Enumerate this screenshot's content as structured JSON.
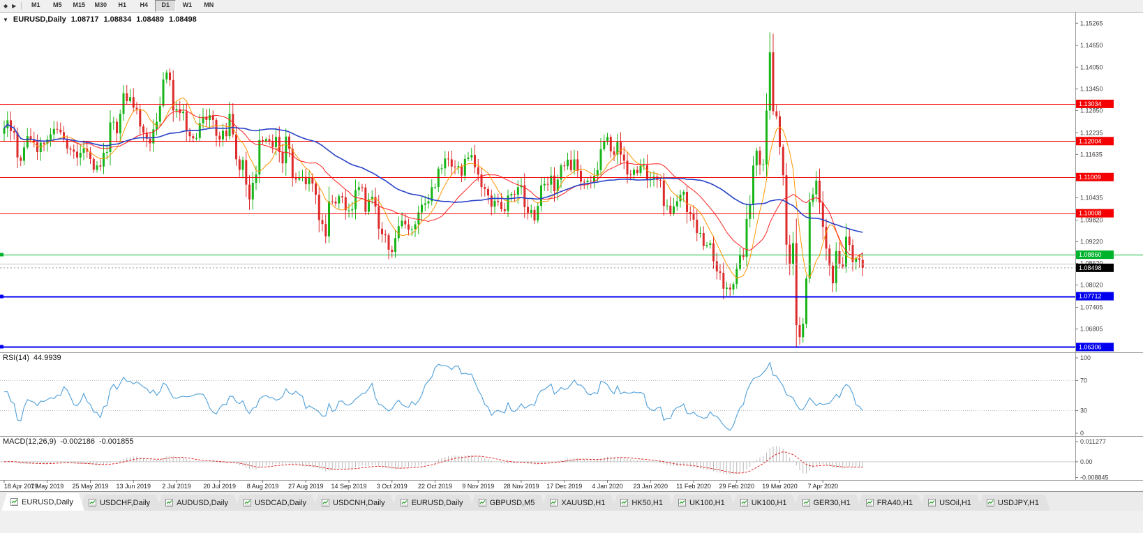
{
  "toolbar": {
    "timeframes": [
      "M1",
      "M5",
      "M15",
      "M30",
      "H1",
      "H4",
      "D1",
      "W1",
      "MN"
    ],
    "active_timeframe": "D1"
  },
  "chart": {
    "symbol_label": "EURUSD,Daily",
    "ohlc": {
      "open": "1.08717",
      "high": "1.08834",
      "low": "1.08489",
      "close": "1.08498"
    }
  },
  "rsi": {
    "label": "RSI(14)",
    "value": "44.9939",
    "scale_labels": [
      100,
      70,
      30,
      0
    ],
    "levels": [
      70,
      30
    ]
  },
  "macd": {
    "label": "MACD(12,26,9)",
    "value_main": "-0.002186",
    "value_signal": "-0.001855",
    "scale_labels": [
      "0.011277",
      "0.00",
      "-0.008845"
    ]
  },
  "colors": {
    "candle_up": "#18b518",
    "candle_down": "#dd2b2b",
    "ma_fast": "#ff9500",
    "ma_mid": "#ff1f1f",
    "ma_slow": "#2742c8",
    "line_red": "#f40000",
    "line_green": "#00b32c",
    "line_blue": "#0000ee",
    "line_gray": "#c4c4c4",
    "bid_label_bg": "#000000",
    "rsi_line": "#4f9fd8",
    "macd_hist": "#b9b9b9",
    "macd_signal": "#e02020",
    "scale_text": "#3c3c3c"
  },
  "tabs": [
    {
      "label": "EURUSD,Daily",
      "active": true
    },
    {
      "label": "USDCHF,Daily",
      "active": false
    },
    {
      "label": "AUDUSD,Daily",
      "active": false
    },
    {
      "label": "USDCAD,Daily",
      "active": false
    },
    {
      "label": "USDCNH,Daily",
      "active": false
    },
    {
      "label": "EURUSD,Daily",
      "active": false
    },
    {
      "label": "GBPUSD,M5",
      "active": false
    },
    {
      "label": "XAUUSD,H1",
      "active": false
    },
    {
      "label": "HK50,H1",
      "active": false
    },
    {
      "label": "UK100,H1",
      "active": false
    },
    {
      "label": "UK100,H1",
      "active": false
    },
    {
      "label": "GER30,H1",
      "active": false
    },
    {
      "label": "FRA40,H1",
      "active": false
    },
    {
      "label": "USOil,H1",
      "active": false
    },
    {
      "label": "USDJPY,H1",
      "active": false
    }
  ],
  "chart_data": {
    "type": "candlestick",
    "symbol": "EURUSD",
    "timeframe": "Daily",
    "ylim": [
      1.0616,
      1.1558
    ],
    "price_scale_labels": [
      1.15265,
      1.1465,
      1.1405,
      1.1345,
      1.1285,
      1.12235,
      1.11635,
      1.10435,
      1.0982,
      1.0922,
      1.0862,
      1.0802,
      1.07405,
      1.06805
    ],
    "hlines": [
      {
        "price": 1.13034,
        "color": "red"
      },
      {
        "price": 1.12004,
        "color": "red"
      },
      {
        "price": 1.11009,
        "color": "red"
      },
      {
        "price": 1.10008,
        "color": "red"
      },
      {
        "price": 1.0886,
        "color": "green"
      },
      {
        "price": 1.0862,
        "color": "gray"
      },
      {
        "price": 1.07712,
        "color": "blue"
      },
      {
        "price": 1.06306,
        "color": "blue"
      }
    ],
    "bid": 1.08498,
    "x_label_step": 13,
    "x_labels": [
      "18 Apr 2019",
      "7 May 2019",
      "25 May 2019",
      "13 Jun 2019",
      "2 Jul 2019",
      "20 Jul 2019",
      "8 Aug 2019",
      "27 Aug 2019",
      "14 Sep 2019",
      "3 Oct 2019",
      "22 Oct 2019",
      "9 Nov 2019",
      "28 Nov 2019",
      "17 Dec 2019",
      "4 Jan 2020",
      "23 Jan 2020",
      "11 Feb 2020",
      "29 Feb 2020",
      "19 Mar 2020",
      "7 Apr 2020"
    ],
    "indicators": {
      "overlays": [
        {
          "type": "SMA",
          "period": 8
        },
        {
          "type": "SMA",
          "period": 20
        },
        {
          "type": "SMA",
          "period": 50
        }
      ],
      "rsi": {
        "period": 14,
        "last": 44.9939,
        "range": [
          0,
          100
        ],
        "levels": [
          70,
          30
        ]
      },
      "macd": {
        "fast": 12,
        "slow": 26,
        "signal": 9,
        "last_main": -0.002186,
        "last_signal": -0.001855,
        "ylim": [
          -0.008845,
          0.011277
        ]
      }
    },
    "closes": [
      1.1236,
      1.1258,
      1.1228,
      1.1224,
      1.1155,
      1.1146,
      1.1183,
      1.1214,
      1.1205,
      1.1197,
      1.117,
      1.1196,
      1.1193,
      1.1205,
      1.1219,
      1.1234,
      1.1232,
      1.1225,
      1.1206,
      1.118,
      1.1177,
      1.1171,
      1.1155,
      1.1168,
      1.118,
      1.1171,
      1.1151,
      1.1121,
      1.1133,
      1.113,
      1.1168,
      1.117,
      1.1252,
      1.1254,
      1.1222,
      1.1276,
      1.1333,
      1.1311,
      1.1322,
      1.1293,
      1.1289,
      1.1241,
      1.1224,
      1.1207,
      1.1194,
      1.1233,
      1.1254,
      1.1298,
      1.1371,
      1.139,
      1.1369,
      1.1285,
      1.1289,
      1.1278,
      1.1282,
      1.1227,
      1.1214,
      1.1208,
      1.1209,
      1.125,
      1.1268,
      1.1259,
      1.1272,
      1.1259,
      1.1215,
      1.1205,
      1.1229,
      1.1214,
      1.1276,
      1.1219,
      1.115,
      1.1121,
      1.1148,
      1.108,
      1.1039,
      1.1085,
      1.1108,
      1.1203,
      1.12,
      1.1206,
      1.12,
      1.1184,
      1.1212,
      1.117,
      1.1139,
      1.1213,
      1.1179,
      1.1098,
      1.1094,
      1.1099,
      1.1101,
      1.1081,
      1.11,
      1.1083,
      1.1052,
      1.0982,
      1.0971,
      1.0937,
      1.1034,
      1.1033,
      1.1028,
      1.1048,
      1.1045,
      1.1009,
      1.1009,
      1.1012,
      1.1065,
      1.1073,
      1.1072,
      1.1005,
      1.1039,
      1.1046,
      1.1019,
      1.0958,
      1.0943,
      1.094,
      1.09,
      1.0894,
      1.0932,
      1.0965,
      1.098,
      1.097,
      1.0956,
      1.0957,
      1.097,
      1.1003,
      1.1024,
      1.1028,
      1.1034,
      1.1073,
      1.1073,
      1.1124,
      1.1125,
      1.1152,
      1.115,
      1.113,
      1.1128,
      1.1131,
      1.1105,
      1.1151,
      1.1155,
      1.1162,
      1.1128,
      1.1108,
      1.1073,
      1.1068,
      1.105,
      1.1019,
      1.1035,
      1.1032,
      1.1012,
      1.1007,
      1.105,
      1.1054,
      1.1052,
      1.1073,
      1.1078,
      1.1018,
      1.1002,
      1.101,
      1.0981,
      1.1021,
      1.1078,
      1.1082,
      1.108,
      1.1105,
      1.1062,
      1.1094,
      1.1133,
      1.1131,
      1.1149,
      1.112,
      1.115,
      1.1118,
      1.1088,
      1.1087,
      1.1091,
      1.1089,
      1.1104,
      1.112,
      1.1178,
      1.1199,
      1.1212,
      1.1172,
      1.1163,
      1.1198,
      1.1163,
      1.1146,
      1.1108,
      1.1107,
      1.1121,
      1.1112,
      1.1132,
      1.1134,
      1.1092,
      1.1096,
      1.1102,
      1.1093,
      1.1091,
      1.1021,
      1.1022,
      1.1001,
      1.102,
      1.1034,
      1.1052,
      1.106,
      1.1004,
      1.1,
      1.0983,
      1.0946,
      1.0946,
      1.091,
      1.0913,
      1.0918,
      1.0868,
      1.084,
      1.0836,
      1.0792,
      1.0795,
      1.079,
      1.0805,
      1.0847,
      1.0884,
      1.088,
      1.0985,
      1.1026,
      1.1133,
      1.1174,
      1.1135,
      1.1136,
      1.1285,
      1.1446,
      1.1283,
      1.1269,
      1.1184,
      1.1106,
      1.0914,
      1.0861,
      1.0918,
      1.0691,
      1.0658,
      1.0695,
      1.082,
      1.1032,
      1.1053,
      1.1091,
      1.103,
      1.0963,
      1.0903,
      1.0856,
      1.0807,
      1.0896,
      1.0859,
      1.0853,
      1.0936,
      1.0913,
      1.0866,
      1.0876,
      1.0872,
      1.085
    ]
  }
}
